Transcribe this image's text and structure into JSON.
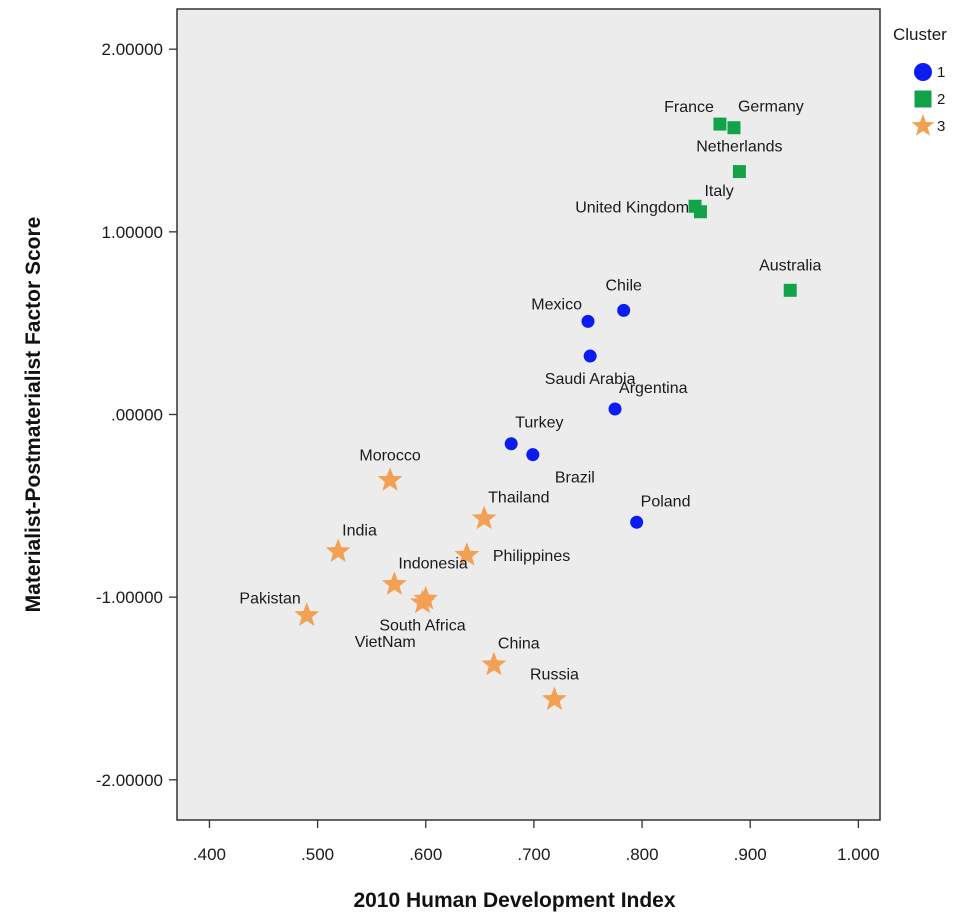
{
  "chart_data": {
    "type": "scatter",
    "xlabel": "2010 Human Development Index",
    "ylabel": "Materialist-Postmaterialist Factor Score",
    "xlim": [
      0.37,
      1.02
    ],
    "ylim": [
      -2.22,
      2.22
    ],
    "x_ticks": [
      ".400",
      ".500",
      ".600",
      ".700",
      ".800",
      ".900",
      "1.000"
    ],
    "x_tick_values": [
      0.4,
      0.5,
      0.6,
      0.7,
      0.8,
      0.9,
      1.0
    ],
    "y_ticks": [
      "2.00000",
      "1.00000",
      ".00000",
      "-1.00000",
      "-2.00000"
    ],
    "y_tick_values": [
      2,
      1,
      0,
      -1,
      -2
    ],
    "grid": false,
    "plot_background": "#ececec",
    "legend": {
      "title": "Cluster",
      "position": "top-right",
      "entries": [
        {
          "label": "1",
          "marker": "circle",
          "color": "#0a1cf0"
        },
        {
          "label": "2",
          "marker": "square",
          "color": "#12a34a"
        },
        {
          "label": "3",
          "marker": "star",
          "color": "#f2a154"
        }
      ]
    },
    "series": [
      {
        "name": "1",
        "marker": "circle",
        "color": "#0a1cf0",
        "points": [
          {
            "label": "Chile",
            "x": 0.783,
            "y": 0.57,
            "anchor": "above"
          },
          {
            "label": "Mexico",
            "x": 0.75,
            "y": 0.51,
            "anchor": "above-left"
          },
          {
            "label": "Saudi Arabia",
            "x": 0.752,
            "y": 0.32,
            "anchor": "below"
          },
          {
            "label": "Argentina",
            "x": 0.775,
            "y": 0.03,
            "anchor": "above-right"
          },
          {
            "label": "Turkey",
            "x": 0.679,
            "y": -0.16,
            "anchor": "above-right"
          },
          {
            "label": "Brazil",
            "x": 0.699,
            "y": -0.22,
            "anchor": "below-right"
          },
          {
            "label": "Poland",
            "x": 0.795,
            "y": -0.59,
            "anchor": "above-right"
          }
        ]
      },
      {
        "name": "2",
        "marker": "square",
        "color": "#12a34a",
        "points": [
          {
            "label": "France",
            "x": 0.872,
            "y": 1.59,
            "anchor": "above-left"
          },
          {
            "label": "Germany",
            "x": 0.885,
            "y": 1.57,
            "anchor": "above-right"
          },
          {
            "label": "Netherlands",
            "x": 0.89,
            "y": 1.33,
            "anchor": "above"
          },
          {
            "label": "Italy",
            "x": 0.854,
            "y": 1.11,
            "anchor": "above-right"
          },
          {
            "label": "United Kingdom",
            "x": 0.849,
            "y": 1.14,
            "anchor": "left"
          },
          {
            "label": "Australia",
            "x": 0.937,
            "y": 0.68,
            "anchor": "above"
          }
        ]
      },
      {
        "name": "3",
        "marker": "star",
        "color": "#f2a154",
        "points": [
          {
            "label": "Morocco",
            "x": 0.567,
            "y": -0.36,
            "anchor": "above"
          },
          {
            "label": "Thailand",
            "x": 0.654,
            "y": -0.57,
            "anchor": "above-right"
          },
          {
            "label": "India",
            "x": 0.519,
            "y": -0.75,
            "anchor": "above-right"
          },
          {
            "label": "Philippines",
            "x": 0.638,
            "y": -0.77,
            "anchor": "right"
          },
          {
            "label": "Indonesia",
            "x": 0.571,
            "y": -0.93,
            "anchor": "above-right"
          },
          {
            "label": "South Africa",
            "x": 0.597,
            "y": -1.03,
            "anchor": "below"
          },
          {
            "label": "VietNam",
            "x": 0.6,
            "y": -1.01,
            "anchor": "below-left"
          },
          {
            "label": "Pakistan",
            "x": 0.49,
            "y": -1.1,
            "anchor": "above-left"
          },
          {
            "label": "China",
            "x": 0.663,
            "y": -1.37,
            "anchor": "above-right"
          },
          {
            "label": "Russia",
            "x": 0.719,
            "y": -1.56,
            "anchor": "above"
          }
        ]
      }
    ]
  }
}
